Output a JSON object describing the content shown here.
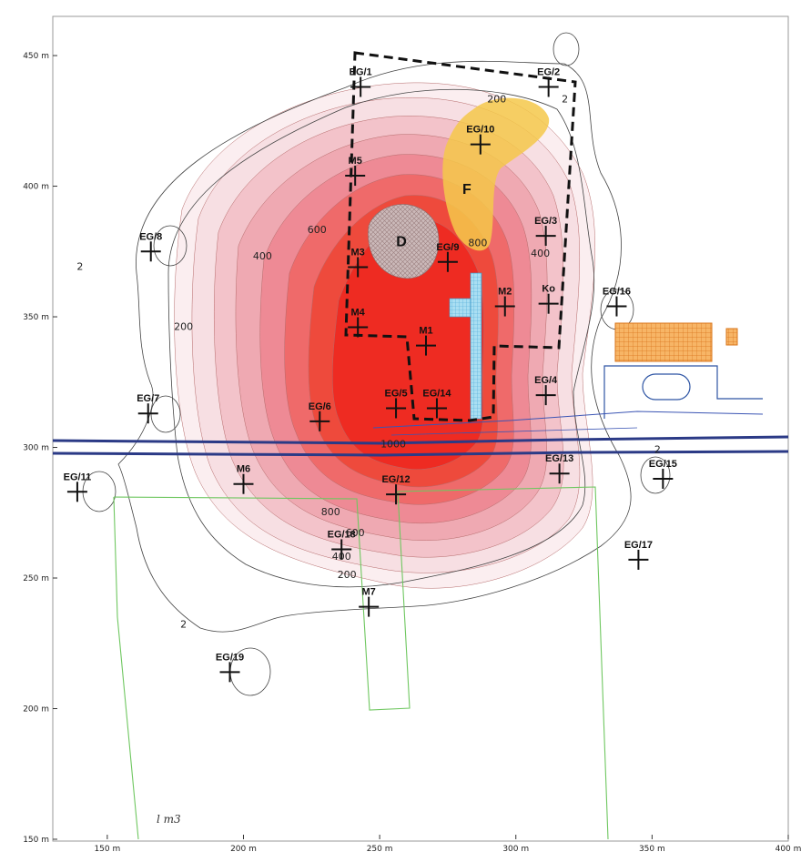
{
  "axes": {
    "x_ticks": [
      {
        "v": 150,
        "label": "150 m"
      },
      {
        "v": 200,
        "label": "200 m"
      },
      {
        "v": 250,
        "label": "250 m"
      },
      {
        "v": 300,
        "label": "300 m"
      },
      {
        "v": 350,
        "label": "350 m"
      },
      {
        "v": 400,
        "label": "400 m"
      }
    ],
    "y_ticks": [
      {
        "v": 150,
        "label": "150 m"
      },
      {
        "v": 200,
        "label": "200 m"
      },
      {
        "v": 250,
        "label": "250 m"
      },
      {
        "v": 300,
        "label": "300 m"
      },
      {
        "v": 350,
        "label": "350 m"
      },
      {
        "v": 400,
        "label": "400 m"
      },
      {
        "v": 450,
        "label": "450 m"
      }
    ],
    "x_range": [
      130,
      400
    ],
    "y_range": [
      150,
      465
    ]
  },
  "wells": [
    {
      "id": "EG/1",
      "x": 243,
      "y": 438
    },
    {
      "id": "EG/2",
      "x": 312,
      "y": 438
    },
    {
      "id": "EG/10",
      "x": 287,
      "y": 416
    },
    {
      "id": "M5",
      "x": 241,
      "y": 404
    },
    {
      "id": "EG/3",
      "x": 311,
      "y": 381
    },
    {
      "id": "EG/8",
      "x": 166,
      "y": 375
    },
    {
      "id": "M3",
      "x": 242,
      "y": 369
    },
    {
      "id": "EG/9",
      "x": 275,
      "y": 371
    },
    {
      "id": "M2",
      "x": 296,
      "y": 354
    },
    {
      "id": "Ko",
      "x": 312,
      "y": 355
    },
    {
      "id": "EG/16",
      "x": 337,
      "y": 354
    },
    {
      "id": "M4",
      "x": 242,
      "y": 346
    },
    {
      "id": "M1",
      "x": 267,
      "y": 339
    },
    {
      "id": "EG/4",
      "x": 311,
      "y": 320
    },
    {
      "id": "EG/7",
      "x": 165,
      "y": 313
    },
    {
      "id": "EG/5",
      "x": 256,
      "y": 315
    },
    {
      "id": "EG/14",
      "x": 271,
      "y": 315
    },
    {
      "id": "EG/6",
      "x": 228,
      "y": 310
    },
    {
      "id": "EG/13",
      "x": 316,
      "y": 290
    },
    {
      "id": "EG/15",
      "x": 354,
      "y": 288
    },
    {
      "id": "EG/11",
      "x": 139,
      "y": 283
    },
    {
      "id": "M6",
      "x": 200,
      "y": 286
    },
    {
      "id": "EG/12",
      "x": 256,
      "y": 282
    },
    {
      "id": "EG/18",
      "x": 236,
      "y": 261
    },
    {
      "id": "EG/17",
      "x": 345,
      "y": 257
    },
    {
      "id": "M7",
      "x": 246,
      "y": 239
    },
    {
      "id": "EG/19",
      "x": 195,
      "y": 214
    }
  ],
  "contour_labels": [
    {
      "text": "2",
      "x": 140,
      "y": 368
    },
    {
      "text": "200",
      "x": 178,
      "y": 345
    },
    {
      "text": "400",
      "x": 207,
      "y": 372
    },
    {
      "text": "600",
      "x": 227,
      "y": 382
    },
    {
      "text": "200",
      "x": 293,
      "y": 432
    },
    {
      "text": "2",
      "x": 318,
      "y": 432
    },
    {
      "text": "400",
      "x": 309,
      "y": 373
    },
    {
      "text": "800",
      "x": 286,
      "y": 377
    },
    {
      "text": "1000",
      "x": 255,
      "y": 300
    },
    {
      "text": "800",
      "x": 232,
      "y": 274
    },
    {
      "text": "600",
      "x": 241,
      "y": 266
    },
    {
      "text": "400",
      "x": 236,
      "y": 257
    },
    {
      "text": "200",
      "x": 238,
      "y": 250
    },
    {
      "text": "2",
      "x": 178,
      "y": 231
    },
    {
      "text": "2",
      "x": 352,
      "y": 298
    }
  ],
  "areas": [
    {
      "text": "D",
      "x": 258,
      "y": 377
    },
    {
      "text": "F",
      "x": 282,
      "y": 397
    }
  ],
  "note": "l m3",
  "colors": {
    "plume_outer": "#f7dfe3",
    "plume_mid": "#ef9aa3",
    "plume_core": "#ee2b22",
    "area_F": "#f5c84a",
    "building": "#f39a3a",
    "water_line": "#2b3a86",
    "parcel": "#6fc760",
    "boundary": "#111111",
    "structure_E": "#7ec8e8"
  }
}
